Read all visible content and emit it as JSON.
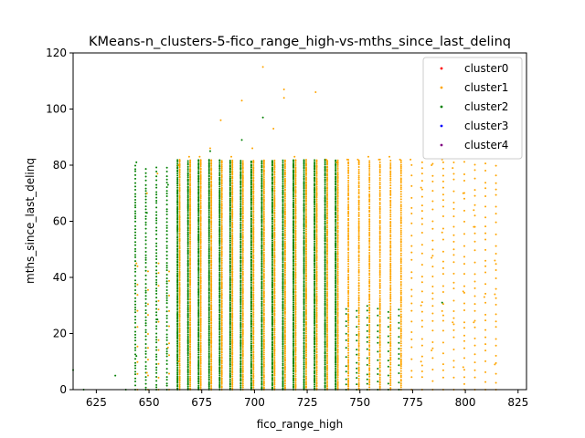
{
  "chart_data": {
    "type": "scatter",
    "title": "KMeans-n_clusters-5-fico_range_high-vs-mths_since_last_delinq",
    "xlabel": "fico_range_high",
    "ylabel": "mths_since_last_delinq",
    "xlim": [
      614,
      829
    ],
    "ylim": [
      0,
      120
    ],
    "xticks": [
      625,
      650,
      675,
      700,
      725,
      750,
      775,
      800,
      825
    ],
    "yticks": [
      0,
      20,
      40,
      60,
      80,
      100,
      120
    ],
    "legend_position": "top-right",
    "fico_grid": [
      634,
      639,
      644,
      649,
      654,
      659,
      664,
      669,
      674,
      679,
      684,
      689,
      694,
      699,
      704,
      709,
      714,
      719,
      724,
      729,
      734,
      739,
      744,
      749,
      754,
      759,
      764,
      769,
      774,
      779,
      784,
      789,
      794,
      799,
      804,
      809,
      814
    ],
    "series": [
      {
        "name": "cluster0",
        "color": "#ff0000",
        "points": []
      },
      {
        "name": "cluster1",
        "color": "#ffa500",
        "points": [
          [
            649,
            70
          ],
          [
            654,
            77
          ],
          [
            664,
            80
          ],
          [
            669,
            83
          ],
          [
            674,
            83
          ],
          [
            679,
            86
          ],
          [
            684,
            96
          ],
          [
            689,
            83
          ],
          [
            694,
            103
          ],
          [
            699,
            86
          ],
          [
            704,
            115
          ],
          [
            709,
            93
          ],
          [
            714,
            107
          ],
          [
            714,
            104
          ],
          [
            719,
            83
          ],
          [
            729,
            106
          ],
          [
            734,
            82
          ],
          [
            739,
            81
          ],
          [
            744,
            82
          ],
          [
            749,
            82
          ],
          [
            754,
            83
          ],
          [
            759,
            82
          ],
          [
            764,
            83
          ],
          [
            769,
            82
          ],
          [
            774,
            82
          ],
          [
            779,
            72
          ],
          [
            784,
            80
          ],
          [
            789,
            82
          ],
          [
            794,
            79
          ],
          [
            799,
            70
          ],
          [
            799,
            8
          ],
          [
            804,
            64
          ],
          [
            804,
            58
          ],
          [
            809,
            33
          ],
          [
            814,
            46
          ],
          [
            814,
            34
          ],
          [
            814,
            9
          ],
          [
            794,
            24
          ],
          [
            789,
            28
          ],
          [
            784,
            14
          ],
          [
            779,
            10
          ],
          [
            799,
            35
          ],
          [
            804,
            24
          ],
          [
            789,
            56
          ],
          [
            784,
            47
          ],
          [
            779,
            30
          ],
          [
            644,
            45
          ],
          [
            649,
            6
          ],
          [
            659,
            15
          ],
          [
            664,
            10
          ]
        ]
      },
      {
        "name": "cluster2",
        "color": "#008000",
        "points": [
          [
            634,
            5
          ],
          [
            639,
            0
          ],
          [
            644,
            81
          ],
          [
            644,
            12
          ],
          [
            649,
            63
          ],
          [
            654,
            25
          ],
          [
            659,
            73
          ],
          [
            679,
            85
          ],
          [
            694,
            89
          ],
          [
            704,
            97
          ],
          [
            789,
            31
          ],
          [
            614,
            7
          ],
          [
            619,
            0
          ]
        ]
      },
      {
        "name": "cluster3",
        "color": "#0000ff",
        "points": []
      },
      {
        "name": "cluster4",
        "color": "#800080",
        "points": []
      }
    ]
  }
}
